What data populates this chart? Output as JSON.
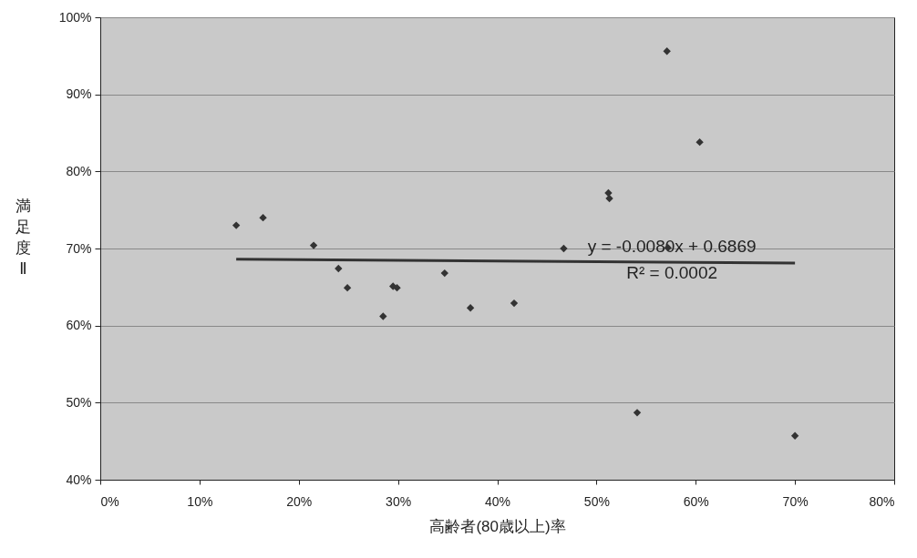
{
  "chart_data": {
    "type": "scatter",
    "xlabel": "高齢者(80歳以上)率",
    "ylabel": "満足度Ⅱ",
    "xlim": [
      0,
      80
    ],
    "xticks": [
      {
        "value": 0,
        "label": "0%"
      },
      {
        "value": 10,
        "label": "10%"
      },
      {
        "value": 20,
        "label": "20%"
      },
      {
        "value": 30,
        "label": "30%"
      },
      {
        "value": 40,
        "label": "40%"
      },
      {
        "value": 50,
        "label": "50%"
      },
      {
        "value": 60,
        "label": "60%"
      },
      {
        "value": 70,
        "label": "70%"
      },
      {
        "value": 80,
        "label": "80%"
      }
    ],
    "ylim": [
      40,
      100
    ],
    "yticks": [
      {
        "value": 40,
        "label": "40%"
      },
      {
        "value": 50,
        "label": "50%"
      },
      {
        "value": 60,
        "label": "60%"
      },
      {
        "value": 70,
        "label": "70%"
      },
      {
        "value": 80,
        "label": "80%"
      },
      {
        "value": 90,
        "label": "90%"
      },
      {
        "value": 100,
        "label": "100%"
      }
    ],
    "grid": "y",
    "marker": "diamond",
    "series": [
      {
        "color": "#333333",
        "x": [
          13.7,
          16.4,
          21.5,
          24.0,
          24.9,
          28.5,
          29.5,
          29.9,
          34.7,
          37.3,
          41.7,
          46.7,
          51.2,
          51.3,
          54.1,
          57.1,
          57.2,
          60.4,
          70.0
        ],
        "values": [
          73.0,
          74.0,
          70.4,
          67.4,
          64.9,
          61.2,
          65.1,
          64.9,
          66.8,
          62.3,
          62.9,
          70.0,
          77.2,
          76.5,
          48.7,
          95.6,
          70.1,
          83.8,
          45.7
        ]
      },
      {
        "type": "line",
        "color": "#333333",
        "line_style": "solid",
        "marker": "none",
        "x": [
          13.7,
          70.0
        ],
        "values": [
          68.6,
          68.1
        ]
      }
    ],
    "annotations": [
      "y = -0.0080x + 0.6869",
      "R² = 0.0002"
    ]
  }
}
